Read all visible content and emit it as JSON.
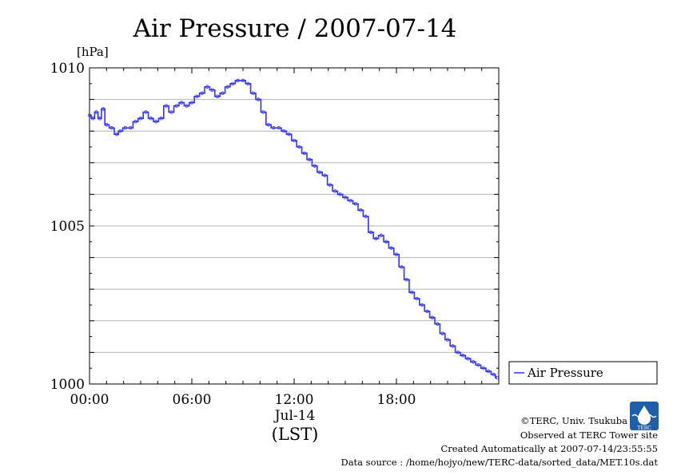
{
  "chart_data": {
    "type": "line",
    "title": "Air Pressure / 2007-07-14",
    "ylabel": "[hPa]",
    "xlabel": "(LST)",
    "date_label": "Jul-14",
    "x_unit": "hours",
    "xlim": [
      0,
      24
    ],
    "ylim": [
      1000,
      1010
    ],
    "y_ticks": [
      1000,
      1005,
      1010
    ],
    "y_tick_labels": [
      "1000",
      "1005",
      "1010"
    ],
    "x_ticks": [
      0,
      6,
      12,
      18
    ],
    "x_tick_labels": [
      "00:00",
      "06:00",
      "12:00",
      "18:00"
    ],
    "grid": true,
    "legend": "bottom-right, outside plot",
    "series": [
      {
        "name": "Air Pressure",
        "color": "#3333ff",
        "x": [
          0,
          0.2,
          0.4,
          0.6,
          0.8,
          1.0,
          1.3,
          1.6,
          1.8,
          2.1,
          2.4,
          2.7,
          3.0,
          3.3,
          3.6,
          3.9,
          4.2,
          4.5,
          4.8,
          5.1,
          5.4,
          5.7,
          6.0,
          6.3,
          6.6,
          6.9,
          7.2,
          7.5,
          7.8,
          8.1,
          8.4,
          8.7,
          9.0,
          9.3,
          9.6,
          9.9,
          10.2,
          10.5,
          10.8,
          11.1,
          11.4,
          11.7,
          12.0,
          12.3,
          12.6,
          12.9,
          13.2,
          13.5,
          13.8,
          14.1,
          14.4,
          14.7,
          15.0,
          15.3,
          15.6,
          15.9,
          16.2,
          16.5,
          16.8,
          17.1,
          17.4,
          17.7,
          18.0,
          18.3,
          18.6,
          18.9,
          19.2,
          19.5,
          19.8,
          20.1,
          20.4,
          20.7,
          21.0,
          21.3,
          21.6,
          21.9,
          22.2,
          22.5,
          22.8,
          23.1,
          23.4,
          23.7,
          23.9
        ],
        "values": [
          1008.5,
          1008.4,
          1008.6,
          1008.4,
          1008.7,
          1008.2,
          1008.1,
          1007.9,
          1008.0,
          1008.1,
          1008.1,
          1008.3,
          1008.4,
          1008.6,
          1008.4,
          1008.3,
          1008.4,
          1008.8,
          1008.6,
          1008.8,
          1008.9,
          1008.8,
          1008.9,
          1009.1,
          1009.2,
          1009.4,
          1009.3,
          1009.1,
          1009.2,
          1009.4,
          1009.5,
          1009.6,
          1009.6,
          1009.5,
          1009.2,
          1009.0,
          1008.6,
          1008.2,
          1008.1,
          1008.1,
          1008.0,
          1007.9,
          1007.7,
          1007.5,
          1007.3,
          1007.1,
          1006.9,
          1006.7,
          1006.6,
          1006.3,
          1006.1,
          1006.0,
          1005.9,
          1005.8,
          1005.7,
          1005.5,
          1005.3,
          1004.8,
          1004.6,
          1004.7,
          1004.5,
          1004.3,
          1004.1,
          1003.7,
          1003.3,
          1002.9,
          1002.7,
          1002.5,
          1002.3,
          1002.1,
          1001.9,
          1001.6,
          1001.4,
          1001.2,
          1001.0,
          1000.9,
          1000.8,
          1000.7,
          1000.6,
          1000.5,
          1000.4,
          1000.3,
          1000.2
        ]
      }
    ]
  },
  "credits": {
    "copyright": "©TERC, Univ. Tsukuba",
    "observed": "Observed at TERC Tower site",
    "created": "Created Automatically at 2007-07-14/23:55:55",
    "source": "Data source : /home/hojyo/new/TERC-data/sorted_data/MET.10s.dat",
    "logo_text": "TERC"
  }
}
